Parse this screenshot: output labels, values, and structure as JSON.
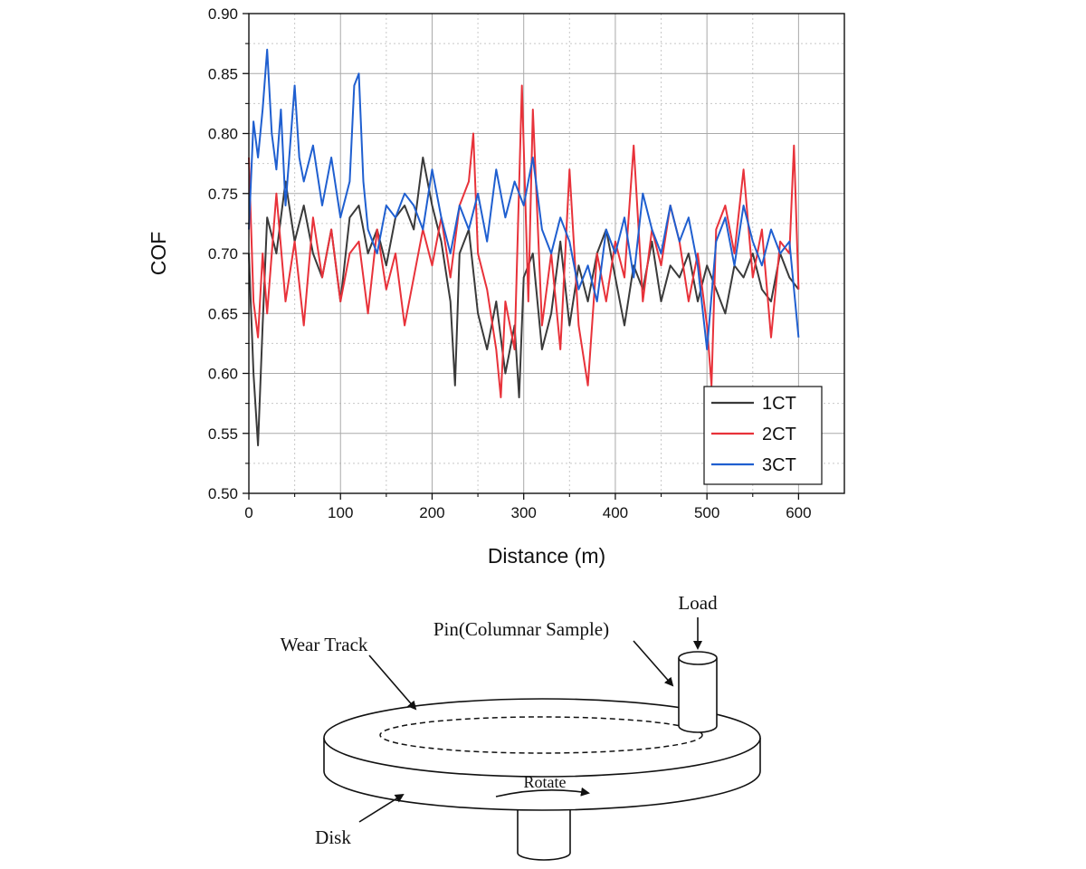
{
  "chart_data": {
    "type": "line",
    "xlabel": "Distance (m)",
    "ylabel": "COF",
    "xlim": [
      0,
      650
    ],
    "ylim": [
      0.5,
      0.9
    ],
    "x_ticks": [
      0,
      100,
      200,
      300,
      400,
      500,
      600
    ],
    "y_ticks": [
      0.5,
      0.55,
      0.6,
      0.65,
      0.7,
      0.75,
      0.8,
      0.85,
      0.9
    ],
    "grid": true,
    "legend_position": "bottom-right",
    "series": [
      {
        "name": "1CT",
        "color": "#3a3a3a",
        "x": [
          0,
          5,
          10,
          15,
          20,
          30,
          40,
          50,
          60,
          70,
          80,
          90,
          100,
          110,
          120,
          130,
          140,
          150,
          160,
          170,
          180,
          190,
          200,
          210,
          220,
          225,
          230,
          240,
          250,
          260,
          270,
          280,
          290,
          295,
          300,
          310,
          320,
          330,
          340,
          350,
          360,
          370,
          380,
          390,
          400,
          410,
          420,
          430,
          440,
          450,
          460,
          470,
          480,
          490,
          500,
          510,
          520,
          530,
          540,
          550,
          560,
          570,
          580,
          590,
          600
        ],
        "y": [
          0.7,
          0.6,
          0.54,
          0.64,
          0.73,
          0.7,
          0.76,
          0.71,
          0.74,
          0.7,
          0.68,
          0.72,
          0.66,
          0.73,
          0.74,
          0.7,
          0.72,
          0.69,
          0.73,
          0.74,
          0.72,
          0.78,
          0.74,
          0.71,
          0.66,
          0.59,
          0.7,
          0.72,
          0.65,
          0.62,
          0.66,
          0.6,
          0.64,
          0.58,
          0.68,
          0.7,
          0.62,
          0.65,
          0.71,
          0.64,
          0.69,
          0.66,
          0.7,
          0.72,
          0.68,
          0.64,
          0.69,
          0.67,
          0.71,
          0.66,
          0.69,
          0.68,
          0.7,
          0.66,
          0.69,
          0.67,
          0.65,
          0.69,
          0.68,
          0.7,
          0.67,
          0.66,
          0.7,
          0.68,
          0.67
        ]
      },
      {
        "name": "2CT",
        "color": "#e8323a",
        "x": [
          0,
          5,
          10,
          15,
          20,
          30,
          40,
          50,
          60,
          70,
          80,
          90,
          100,
          110,
          120,
          130,
          140,
          150,
          160,
          170,
          180,
          190,
          200,
          210,
          220,
          230,
          240,
          245,
          250,
          260,
          270,
          275,
          280,
          290,
          298,
          305,
          310,
          320,
          330,
          340,
          350,
          360,
          370,
          380,
          390,
          400,
          410,
          420,
          430,
          440,
          450,
          460,
          470,
          480,
          490,
          500,
          505,
          510,
          520,
          530,
          540,
          550,
          560,
          570,
          580,
          590,
          595,
          600
        ],
        "y": [
          0.78,
          0.66,
          0.63,
          0.7,
          0.65,
          0.75,
          0.66,
          0.71,
          0.64,
          0.73,
          0.68,
          0.72,
          0.66,
          0.7,
          0.71,
          0.65,
          0.72,
          0.67,
          0.7,
          0.64,
          0.68,
          0.72,
          0.69,
          0.73,
          0.68,
          0.74,
          0.76,
          0.8,
          0.7,
          0.67,
          0.62,
          0.58,
          0.66,
          0.62,
          0.84,
          0.66,
          0.82,
          0.64,
          0.7,
          0.62,
          0.77,
          0.64,
          0.59,
          0.7,
          0.66,
          0.71,
          0.68,
          0.79,
          0.66,
          0.72,
          0.69,
          0.74,
          0.71,
          0.66,
          0.7,
          0.64,
          0.59,
          0.72,
          0.74,
          0.7,
          0.77,
          0.68,
          0.72,
          0.63,
          0.71,
          0.7,
          0.79,
          0.67
        ]
      },
      {
        "name": "3CT",
        "color": "#1f5fd0",
        "x": [
          0,
          5,
          10,
          15,
          20,
          25,
          30,
          35,
          40,
          45,
          50,
          55,
          60,
          70,
          80,
          90,
          100,
          110,
          115,
          120,
          125,
          130,
          140,
          150,
          160,
          170,
          180,
          190,
          200,
          210,
          220,
          230,
          240,
          250,
          260,
          270,
          280,
          290,
          300,
          310,
          320,
          330,
          340,
          350,
          360,
          370,
          380,
          390,
          400,
          410,
          420,
          430,
          440,
          450,
          460,
          470,
          480,
          490,
          500,
          510,
          520,
          530,
          540,
          550,
          560,
          570,
          580,
          590,
          600
        ],
        "y": [
          0.72,
          0.81,
          0.78,
          0.82,
          0.87,
          0.8,
          0.77,
          0.82,
          0.74,
          0.79,
          0.84,
          0.78,
          0.76,
          0.79,
          0.74,
          0.78,
          0.73,
          0.76,
          0.84,
          0.85,
          0.76,
          0.72,
          0.7,
          0.74,
          0.73,
          0.75,
          0.74,
          0.72,
          0.77,
          0.73,
          0.7,
          0.74,
          0.72,
          0.75,
          0.71,
          0.77,
          0.73,
          0.76,
          0.74,
          0.78,
          0.72,
          0.7,
          0.73,
          0.71,
          0.67,
          0.69,
          0.66,
          0.72,
          0.7,
          0.73,
          0.68,
          0.75,
          0.72,
          0.7,
          0.74,
          0.71,
          0.73,
          0.69,
          0.62,
          0.71,
          0.73,
          0.69,
          0.74,
          0.71,
          0.69,
          0.72,
          0.7,
          0.71,
          0.63
        ]
      }
    ]
  },
  "diagram": {
    "labels": {
      "load": "Load",
      "pin": "Pin(Columnar Sample)",
      "wear_track": "Wear Track",
      "rotate": "Rotate",
      "disk": "Disk"
    }
  }
}
